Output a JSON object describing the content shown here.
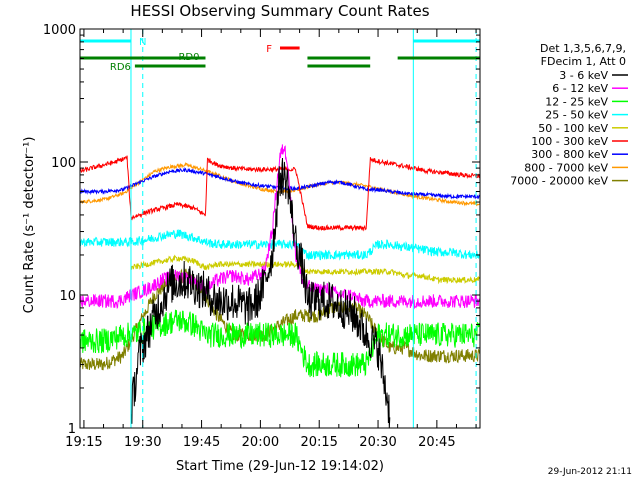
{
  "chart_data": {
    "type": "line",
    "title": "HESSI Observing Summary Count Rates",
    "xlabel": "Start Time (29-Jun-12 19:14:02)",
    "ylabel": "Count Rate (s⁻¹ detector⁻¹)",
    "timestamp": "29-Jun-2012 21:11",
    "x_range_minutes_from_1915": [
      -1,
      101
    ],
    "y_range": [
      1,
      1000
    ],
    "y_scale": "log",
    "x_ticks": [
      "19:15",
      "19:30",
      "19:45",
      "20:00",
      "20:15",
      "20:30",
      "20:45"
    ],
    "y_ticks": [
      "1",
      "10",
      "100",
      "1000"
    ],
    "legend": {
      "header": [
        "Det 1,3,5,6,7,9,",
        "FDecim 1, Att 0"
      ],
      "position": "right",
      "entries": [
        {
          "label": "3 - 6 keV",
          "color": "#000000"
        },
        {
          "label": "6 - 12 keV",
          "color": "#ff00ff"
        },
        {
          "label": "12 - 25 keV",
          "color": "#00ff00"
        },
        {
          "label": "25 - 50 keV",
          "color": "#00ffff"
        },
        {
          "label": "50 - 100 keV",
          "color": "#cccc00"
        },
        {
          "label": "100 - 300 keV",
          "color": "#ff0000"
        },
        {
          "label": "300 - 800 keV",
          "color": "#0000ff"
        },
        {
          "label": "800 - 7000 keV",
          "color": "#ff9900"
        },
        {
          "label": "7000 - 20000 keV",
          "color": "#808000"
        }
      ]
    },
    "flags": [
      {
        "label": "N",
        "color": "#00ffff"
      },
      {
        "label": "F",
        "color": "#ff0000"
      },
      {
        "label": "RD0",
        "color": "#008000"
      },
      {
        "label": "RD6",
        "color": "#008000"
      }
    ],
    "flag_intervals": {
      "N": [
        [
          -1,
          12
        ],
        [
          84,
          101
        ]
      ],
      "F": [
        [
          50,
          55
        ]
      ],
      "RD0": [
        [
          -1,
          31
        ],
        [
          57,
          73
        ],
        [
          80,
          101
        ]
      ],
      "RD6": [
        [
          13,
          31
        ],
        [
          57,
          73
        ]
      ]
    },
    "night_boundaries": [
      12,
      84
    ],
    "saa_boundaries": [
      15,
      100
    ],
    "day_intervals": [
      [
        12,
        31
      ],
      [
        31,
        57
      ],
      [
        57,
        73
      ],
      [
        73,
        84
      ]
    ],
    "series": [
      {
        "name": "3 - 6 keV",
        "color": "#000000",
        "levels": [
          [
            12,
            1.3
          ],
          [
            14,
            3.5
          ],
          [
            18,
            7
          ],
          [
            22,
            12
          ],
          [
            26,
            13
          ],
          [
            30,
            11
          ],
          [
            34,
            9
          ],
          [
            38,
            9
          ],
          [
            42,
            8
          ],
          [
            44,
            9
          ],
          [
            46,
            12
          ],
          [
            48,
            20
          ],
          [
            49,
            40
          ],
          [
            50,
            75
          ],
          [
            50.5,
            80
          ],
          [
            52,
            70
          ],
          [
            53,
            40
          ],
          [
            54,
            25
          ],
          [
            56,
            15
          ],
          [
            57,
            9
          ],
          [
            60,
            9
          ],
          [
            63,
            9
          ],
          [
            66,
            8
          ],
          [
            69,
            7
          ],
          [
            72,
            5
          ],
          [
            75,
            4
          ],
          [
            78,
            1.3
          ]
        ]
      },
      {
        "name": "6 - 12 keV",
        "color": "#ff00ff",
        "levels": [
          [
            -1,
            9
          ],
          [
            3,
            9
          ],
          [
            6,
            9
          ],
          [
            9,
            9
          ],
          [
            12,
            10
          ],
          [
            16,
            11
          ],
          [
            20,
            13
          ],
          [
            24,
            14
          ],
          [
            28,
            13
          ],
          [
            31,
            11
          ],
          [
            34,
            13
          ],
          [
            38,
            14
          ],
          [
            42,
            13
          ],
          [
            46,
            15
          ],
          [
            48,
            30
          ],
          [
            49,
            60
          ],
          [
            50,
            110
          ],
          [
            51,
            130
          ],
          [
            52,
            100
          ],
          [
            53,
            40
          ],
          [
            54,
            20
          ],
          [
            56,
            12
          ],
          [
            59,
            11
          ],
          [
            62,
            11
          ],
          [
            65,
            10
          ],
          [
            68,
            10
          ],
          [
            71,
            9
          ],
          [
            74,
            9
          ],
          [
            78,
            9
          ],
          [
            82,
            9
          ],
          [
            86,
            9
          ],
          [
            90,
            9
          ],
          [
            94,
            9
          ],
          [
            98,
            9
          ],
          [
            101,
            9
          ]
        ]
      },
      {
        "name": "12 - 25 keV",
        "color": "#00ff00",
        "levels": [
          [
            -1,
            4.5
          ],
          [
            5,
            4.5
          ],
          [
            10,
            5
          ],
          [
            12,
            5
          ],
          [
            16,
            5.5
          ],
          [
            20,
            6
          ],
          [
            24,
            6.5
          ],
          [
            28,
            6
          ],
          [
            31,
            5
          ],
          [
            34,
            5
          ],
          [
            38,
            5
          ],
          [
            42,
            5
          ],
          [
            46,
            5
          ],
          [
            50,
            5
          ],
          [
            54,
            5
          ],
          [
            57,
            3
          ],
          [
            60,
            3
          ],
          [
            63,
            3
          ],
          [
            66,
            3
          ],
          [
            69,
            3
          ],
          [
            72,
            3
          ],
          [
            75,
            5
          ],
          [
            78,
            5
          ],
          [
            82,
            5
          ],
          [
            86,
            5
          ],
          [
            90,
            5
          ],
          [
            94,
            5
          ],
          [
            98,
            5
          ],
          [
            101,
            5
          ]
        ]
      },
      {
        "name": "25 - 50 keV",
        "color": "#00ffff",
        "levels": [
          [
            -1,
            25
          ],
          [
            5,
            25
          ],
          [
            10,
            25
          ],
          [
            12,
            25
          ],
          [
            16,
            26
          ],
          [
            20,
            28
          ],
          [
            24,
            29
          ],
          [
            28,
            27
          ],
          [
            31,
            25
          ],
          [
            34,
            24
          ],
          [
            38,
            24
          ],
          [
            42,
            24
          ],
          [
            46,
            24
          ],
          [
            50,
            24
          ],
          [
            54,
            24
          ],
          [
            57,
            20
          ],
          [
            60,
            20
          ],
          [
            63,
            20
          ],
          [
            66,
            20
          ],
          [
            69,
            20
          ],
          [
            72,
            20
          ],
          [
            75,
            24
          ],
          [
            78,
            24
          ],
          [
            82,
            23
          ],
          [
            86,
            22
          ],
          [
            90,
            21
          ],
          [
            94,
            21
          ],
          [
            98,
            20
          ],
          [
            101,
            20
          ]
        ]
      },
      {
        "name": "50 - 100 keV",
        "color": "#cccc00",
        "levels": [
          [
            12,
            16
          ],
          [
            16,
            17
          ],
          [
            20,
            18
          ],
          [
            24,
            19
          ],
          [
            28,
            18
          ],
          [
            31,
            16
          ],
          [
            34,
            17
          ],
          [
            38,
            17
          ],
          [
            42,
            17
          ],
          [
            46,
            17
          ],
          [
            50,
            17
          ],
          [
            54,
            17
          ],
          [
            57,
            15
          ],
          [
            60,
            15
          ],
          [
            63,
            15
          ],
          [
            66,
            15
          ],
          [
            69,
            15
          ],
          [
            72,
            15
          ],
          [
            75,
            15
          ],
          [
            78,
            15
          ],
          [
            82,
            14
          ],
          [
            86,
            14
          ],
          [
            90,
            13
          ],
          [
            94,
            13
          ],
          [
            98,
            13
          ],
          [
            101,
            13
          ]
        ]
      },
      {
        "name": "100 - 300 keV",
        "color": "#ff0000",
        "levels": [
          [
            -1,
            85
          ],
          [
            2,
            90
          ],
          [
            5,
            95
          ],
          [
            8,
            100
          ],
          [
            11,
            108
          ],
          [
            12,
            38
          ],
          [
            16,
            42
          ],
          [
            20,
            45
          ],
          [
            24,
            48
          ],
          [
            28,
            45
          ],
          [
            31,
            40
          ],
          [
            31.5,
            105
          ],
          [
            34,
            95
          ],
          [
            38,
            90
          ],
          [
            42,
            88
          ],
          [
            46,
            88
          ],
          [
            50,
            88
          ],
          [
            54,
            88
          ],
          [
            57,
            33
          ],
          [
            60,
            32
          ],
          [
            63,
            32
          ],
          [
            66,
            32
          ],
          [
            69,
            32
          ],
          [
            72,
            32
          ],
          [
            73,
            105
          ],
          [
            76,
            100
          ],
          [
            80,
            95
          ],
          [
            84,
            90
          ],
          [
            88,
            85
          ],
          [
            92,
            83
          ],
          [
            96,
            80
          ],
          [
            101,
            78
          ]
        ]
      },
      {
        "name": "300 - 800 keV",
        "color": "#0000ff",
        "levels": [
          [
            -1,
            60
          ],
          [
            5,
            60
          ],
          [
            10,
            62
          ],
          [
            14,
            70
          ],
          [
            18,
            78
          ],
          [
            22,
            85
          ],
          [
            26,
            87
          ],
          [
            30,
            83
          ],
          [
            34,
            78
          ],
          [
            38,
            72
          ],
          [
            42,
            68
          ],
          [
            46,
            66
          ],
          [
            50,
            64
          ],
          [
            54,
            63
          ],
          [
            57,
            65
          ],
          [
            60,
            68
          ],
          [
            63,
            71
          ],
          [
            66,
            70
          ],
          [
            69,
            66
          ],
          [
            72,
            62
          ],
          [
            75,
            62
          ],
          [
            78,
            60
          ],
          [
            82,
            58
          ],
          [
            86,
            57
          ],
          [
            90,
            56
          ],
          [
            94,
            55
          ],
          [
            98,
            55
          ],
          [
            101,
            55
          ]
        ]
      },
      {
        "name": "800 - 7000 keV",
        "color": "#ff9900",
        "levels": [
          [
            -1,
            50
          ],
          [
            5,
            52
          ],
          [
            10,
            58
          ],
          [
            14,
            70
          ],
          [
            18,
            85
          ],
          [
            22,
            92
          ],
          [
            26,
            95
          ],
          [
            30,
            88
          ],
          [
            34,
            80
          ],
          [
            38,
            72
          ],
          [
            42,
            66
          ],
          [
            46,
            62
          ],
          [
            50,
            60
          ],
          [
            54,
            61
          ],
          [
            57,
            65
          ],
          [
            60,
            68
          ],
          [
            63,
            70
          ],
          [
            66,
            70
          ],
          [
            69,
            68
          ],
          [
            72,
            66
          ],
          [
            75,
            63
          ],
          [
            78,
            60
          ],
          [
            82,
            57
          ],
          [
            86,
            54
          ],
          [
            90,
            52
          ],
          [
            94,
            50
          ],
          [
            98,
            49
          ],
          [
            101,
            48
          ]
        ]
      },
      {
        "name": "7000 - 20000 keV",
        "color": "#808000",
        "levels": [
          [
            -1,
            3
          ],
          [
            5,
            3
          ],
          [
            10,
            3.5
          ],
          [
            14,
            6
          ],
          [
            18,
            10
          ],
          [
            22,
            13
          ],
          [
            26,
            14
          ],
          [
            30,
            11
          ],
          [
            34,
            7
          ],
          [
            38,
            5
          ],
          [
            42,
            5
          ],
          [
            46,
            5
          ],
          [
            50,
            6
          ],
          [
            54,
            7
          ],
          [
            57,
            7
          ],
          [
            60,
            7
          ],
          [
            63,
            8
          ],
          [
            66,
            8
          ],
          [
            69,
            8
          ],
          [
            72,
            7
          ],
          [
            75,
            5
          ],
          [
            78,
            4
          ],
          [
            82,
            4
          ],
          [
            86,
            3.5
          ],
          [
            90,
            3.5
          ],
          [
            94,
            3.5
          ],
          [
            98,
            3.5
          ],
          [
            101,
            3.5
          ]
        ]
      }
    ]
  }
}
